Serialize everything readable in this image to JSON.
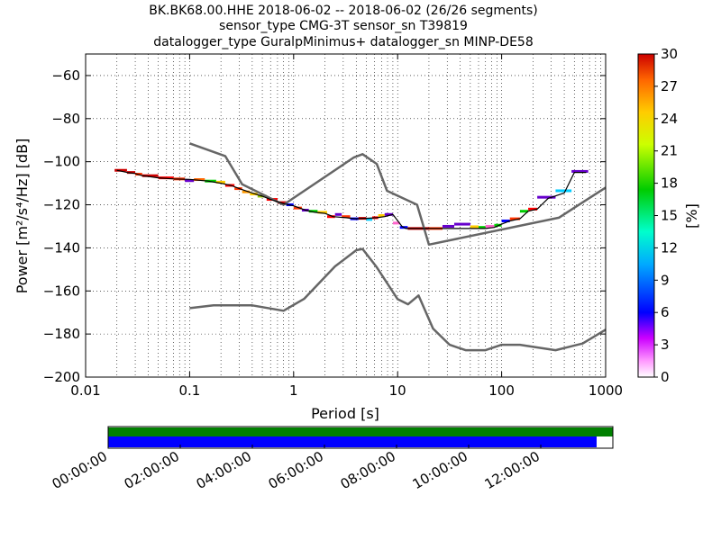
{
  "title_lines": [
    "BK.BK68.00.HHE   2018-06-02 -- 2018-06-02  (26/26 segments)",
    "sensor_type CMG-3T sensor_sn T39819",
    "datalogger_type GuralpMinimus+ datalogger_sn MINP-DE58"
  ],
  "colorbar": {
    "label": "[%]",
    "ticks": [
      0,
      3,
      6,
      9,
      12,
      15,
      18,
      21,
      24,
      27,
      30
    ],
    "range": [
      0,
      30
    ]
  },
  "chart_data": [
    {
      "type": "line",
      "name": "ppsd",
      "xlabel": "Period [s]",
      "ylabel": "Power [m²/s⁴/Hz] [dB]",
      "x_scale": "log",
      "xlim": [
        0.01,
        1000
      ],
      "ylim": [
        -200,
        -50
      ],
      "x_ticks": [
        {
          "v": 0.01,
          "label": "0.01"
        },
        {
          "v": 0.1,
          "label": "0.1"
        },
        {
          "v": 1,
          "label": "1"
        },
        {
          "v": 10,
          "label": "10"
        },
        {
          "v": 100,
          "label": "100"
        },
        {
          "v": 1000,
          "label": "1000"
        }
      ],
      "y_ticks": [
        {
          "v": -60,
          "label": "−60"
        },
        {
          "v": -80,
          "label": "−80"
        },
        {
          "v": -100,
          "label": "−100"
        },
        {
          "v": -120,
          "label": "−120"
        },
        {
          "v": -140,
          "label": "−140"
        },
        {
          "v": -160,
          "label": "−160"
        },
        {
          "v": -180,
          "label": "−180"
        },
        {
          "v": -200,
          "label": "−200"
        }
      ],
      "grid": true,
      "series": [
        {
          "role": "high_noise_model",
          "color": "#666666",
          "points": [
            [
              0.1,
              -91.5
            ],
            [
              0.22,
              -97.4
            ],
            [
              0.32,
              -110.5
            ],
            [
              0.8,
              -120
            ],
            [
              3.8,
              -98
            ],
            [
              4.6,
              -96.5
            ],
            [
              6.3,
              -101
            ],
            [
              7.9,
              -113.5
            ],
            [
              15.4,
              -120
            ],
            [
              20,
              -138.5
            ],
            [
              354.8,
              -126
            ],
            [
              1000,
              -112
            ]
          ]
        },
        {
          "role": "low_noise_model",
          "color": "#666666",
          "points": [
            [
              0.1,
              -168
            ],
            [
              0.17,
              -166.7
            ],
            [
              0.4,
              -166.7
            ],
            [
              0.8,
              -169.2
            ],
            [
              1.26,
              -163.7
            ],
            [
              2.5,
              -148.6
            ],
            [
              4,
              -141.1
            ],
            [
              4.6,
              -140.5
            ],
            [
              6.3,
              -149
            ],
            [
              10,
              -163.8
            ],
            [
              12.6,
              -166.2
            ],
            [
              15.9,
              -162.1
            ],
            [
              21.9,
              -177.5
            ],
            [
              31.6,
              -185
            ],
            [
              45,
              -187.5
            ],
            [
              70,
              -187.5
            ],
            [
              100,
              -185
            ],
            [
              150,
              -185
            ],
            [
              330,
              -187.5
            ],
            [
              600,
              -184.4
            ],
            [
              1000,
              -178
            ]
          ]
        },
        {
          "role": "psd_mode",
          "color": "#000000",
          "points": [
            [
              0.02,
              -104
            ],
            [
              0.025,
              -105
            ],
            [
              0.03,
              -105.5
            ],
            [
              0.035,
              -106.5
            ],
            [
              0.05,
              -107.5
            ],
            [
              0.07,
              -108
            ],
            [
              0.1,
              -108.2
            ],
            [
              0.15,
              -109
            ],
            [
              0.2,
              -110
            ],
            [
              0.25,
              -111
            ],
            [
              0.3,
              -112.5
            ],
            [
              0.4,
              -114.5
            ],
            [
              0.5,
              -116
            ],
            [
              0.6,
              -117.5
            ],
            [
              0.8,
              -119.5
            ],
            [
              1.0,
              -120.5
            ],
            [
              1.3,
              -122.5
            ],
            [
              1.6,
              -123.5
            ],
            [
              2,
              -124
            ],
            [
              2.4,
              -125.5
            ],
            [
              3.2,
              -126
            ],
            [
              3.9,
              -126.5
            ],
            [
              5,
              -126.3
            ],
            [
              6.3,
              -126
            ],
            [
              7.5,
              -125.5
            ],
            [
              9,
              -124.5
            ],
            [
              11,
              -130
            ],
            [
              12,
              -131
            ],
            [
              15,
              -131
            ],
            [
              20,
              -131
            ],
            [
              30,
              -131
            ],
            [
              50,
              -131
            ],
            [
              70,
              -131
            ],
            [
              85,
              -130.5
            ],
            [
              100,
              -129
            ],
            [
              120,
              -127.5
            ],
            [
              150,
              -126.5
            ],
            [
              180,
              -123
            ],
            [
              220,
              -122
            ],
            [
              280,
              -117
            ],
            [
              400,
              -114.5
            ],
            [
              500,
              -105
            ],
            [
              650,
              -105
            ]
          ]
        }
      ],
      "segments": [
        {
          "x0": 0.019,
          "x1": 0.025,
          "y": -104,
          "c": "#cc0000"
        },
        {
          "x0": 0.025,
          "x1": 0.03,
          "y": -105,
          "c": "#cc0000"
        },
        {
          "x0": 0.03,
          "x1": 0.035,
          "y": -105.8,
          "c": "#ff3300"
        },
        {
          "x0": 0.035,
          "x1": 0.05,
          "y": -106.5,
          "c": "#cc0000"
        },
        {
          "x0": 0.05,
          "x1": 0.07,
          "y": -107.5,
          "c": "#ff0000"
        },
        {
          "x0": 0.07,
          "x1": 0.09,
          "y": -108,
          "c": "#ff3300"
        },
        {
          "x0": 0.09,
          "x1": 0.11,
          "y": -108.8,
          "c": "#6600cc"
        },
        {
          "x0": 0.11,
          "x1": 0.14,
          "y": -108.3,
          "c": "#ff6600"
        },
        {
          "x0": 0.14,
          "x1": 0.18,
          "y": -109,
          "c": "#00cc00"
        },
        {
          "x0": 0.18,
          "x1": 0.22,
          "y": -109.5,
          "c": "#ffcc00"
        },
        {
          "x0": 0.22,
          "x1": 0.27,
          "y": -111,
          "c": "#ff0000"
        },
        {
          "x0": 0.27,
          "x1": 0.32,
          "y": -112.5,
          "c": "#ff3300"
        },
        {
          "x0": 0.32,
          "x1": 0.38,
          "y": -114,
          "c": "#ff9900"
        },
        {
          "x0": 0.38,
          "x1": 0.45,
          "y": -115,
          "c": "#ffcc00"
        },
        {
          "x0": 0.45,
          "x1": 0.55,
          "y": -116,
          "c": "#99cc00"
        },
        {
          "x0": 0.55,
          "x1": 0.7,
          "y": -117.5,
          "c": "#ff0000"
        },
        {
          "x0": 0.7,
          "x1": 0.85,
          "y": -119,
          "c": "#cc0000"
        },
        {
          "x0": 0.85,
          "x1": 1.0,
          "y": -120,
          "c": "#0000ff"
        },
        {
          "x0": 1.0,
          "x1": 1.2,
          "y": -121.5,
          "c": "#ff3300"
        },
        {
          "x0": 1.2,
          "x1": 1.4,
          "y": -122.5,
          "c": "#6600cc"
        },
        {
          "x0": 1.4,
          "x1": 1.7,
          "y": -123,
          "c": "#00cc00"
        },
        {
          "x0": 1.7,
          "x1": 2.1,
          "y": -123.5,
          "c": "#ffcc00"
        },
        {
          "x0": 2.1,
          "x1": 2.5,
          "y": -125.5,
          "c": "#ff0000"
        },
        {
          "x0": 2.5,
          "x1": 2.9,
          "y": -124.5,
          "c": "#6600cc"
        },
        {
          "x0": 2.9,
          "x1": 3.5,
          "y": -125.5,
          "c": "#ff3300"
        },
        {
          "x0": 3.5,
          "x1": 4.2,
          "y": -126.5,
          "c": "#0000ff"
        },
        {
          "x0": 4.2,
          "x1": 5.0,
          "y": -126.3,
          "c": "#cc0000"
        },
        {
          "x0": 5.0,
          "x1": 5.7,
          "y": -126.8,
          "c": "#00ccff"
        },
        {
          "x0": 5.7,
          "x1": 6.5,
          "y": -126,
          "c": "#ff0000"
        },
        {
          "x0": 6.5,
          "x1": 7.5,
          "y": -125,
          "c": "#ffcc00"
        },
        {
          "x0": 7.5,
          "x1": 9.0,
          "y": -124.5,
          "c": "#6600cc"
        },
        {
          "x0": 9.0,
          "x1": 10.5,
          "y": -128.5,
          "c": "#ff66cc"
        },
        {
          "x0": 10.5,
          "x1": 12.5,
          "y": -130.5,
          "c": "#0000ff"
        },
        {
          "x0": 12.5,
          "x1": 20,
          "y": -131,
          "c": "#cc0000"
        },
        {
          "x0": 20,
          "x1": 27,
          "y": -131,
          "c": "#ff3300"
        },
        {
          "x0": 27,
          "x1": 35,
          "y": -130,
          "c": "#6600cc"
        },
        {
          "x0": 35,
          "x1": 50,
          "y": -129,
          "c": "#6600cc"
        },
        {
          "x0": 50,
          "x1": 60,
          "y": -130.2,
          "c": "#ffcc00"
        },
        {
          "x0": 60,
          "x1": 70,
          "y": -130.5,
          "c": "#00cc00"
        },
        {
          "x0": 70,
          "x1": 85,
          "y": -130,
          "c": "#ff66cc"
        },
        {
          "x0": 85,
          "x1": 100,
          "y": -129.5,
          "c": "#00cc00"
        },
        {
          "x0": 100,
          "x1": 120,
          "y": -127.5,
          "c": "#0000ff"
        },
        {
          "x0": 120,
          "x1": 150,
          "y": -126.5,
          "c": "#ff3300"
        },
        {
          "x0": 150,
          "x1": 180,
          "y": -123,
          "c": "#00cc00"
        },
        {
          "x0": 180,
          "x1": 220,
          "y": -122,
          "c": "#ff0000"
        },
        {
          "x0": 220,
          "x1": 330,
          "y": -116.5,
          "c": "#6600cc"
        },
        {
          "x0": 330,
          "x1": 470,
          "y": -113.5,
          "c": "#00ccff"
        },
        {
          "x0": 470,
          "x1": 680,
          "y": -104.5,
          "c": "#6600cc"
        }
      ]
    },
    {
      "type": "bar",
      "name": "data_coverage",
      "x_ticks": [
        "00:00:00",
        "02:00:00",
        "04:00:00",
        "06:00:00",
        "08:00:00",
        "10:00:00",
        "12:00:00"
      ],
      "total_hours": 14,
      "rows": [
        {
          "color": "#008000",
          "start_hour": 0,
          "end_hour": 14
        },
        {
          "color": "#0000ff",
          "start_hour": 0,
          "end_hour": 13.55
        }
      ]
    }
  ]
}
